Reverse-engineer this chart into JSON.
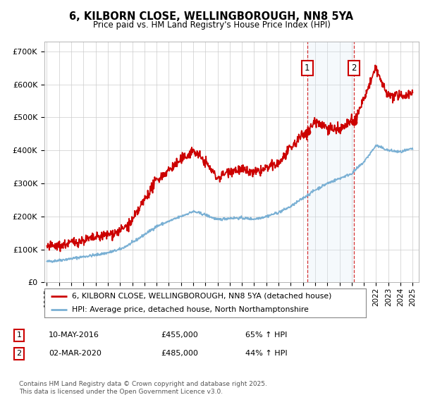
{
  "title": "6, KILBORN CLOSE, WELLINGBOROUGH, NN8 5YA",
  "subtitle": "Price paid vs. HM Land Registry's House Price Index (HPI)",
  "ylabel_values": [
    "£0",
    "£100K",
    "£200K",
    "£300K",
    "£400K",
    "£500K",
    "£600K",
    "£700K"
  ],
  "yticks": [
    0,
    100000,
    200000,
    300000,
    400000,
    500000,
    600000,
    700000
  ],
  "ylim": [
    0,
    730000
  ],
  "xlim_start": 1994.8,
  "xlim_end": 2025.5,
  "line1_color": "#cc0000",
  "line2_color": "#7ab0d4",
  "sale1_date": "10-MAY-2016",
  "sale1_price": 455000,
  "sale1_pct": "65%",
  "sale2_date": "02-MAR-2020",
  "sale2_price": 485000,
  "sale2_pct": "44%",
  "sale1_x": 2016.36,
  "sale2_x": 2020.17,
  "legend1_label": "6, KILBORN CLOSE, WELLINGBOROUGH, NN8 5YA (detached house)",
  "legend2_label": "HPI: Average price, detached house, North Northamptonshire",
  "footnote": "Contains HM Land Registry data © Crown copyright and database right 2025.\nThis data is licensed under the Open Government Licence v3.0.",
  "background_color": "#ffffff",
  "grid_color": "#cccccc",
  "shaded_region_color": "#d8e8f5",
  "hpi_ctrl_years": [
    1995,
    1996,
    1997,
    1998,
    1999,
    2000,
    2001,
    2002,
    2003,
    2004,
    2005,
    2006,
    2007,
    2008,
    2009,
    2010,
    2011,
    2012,
    2013,
    2014,
    2015,
    2016,
    2017,
    2018,
    2019,
    2020,
    2021,
    2022,
    2023,
    2024,
    2025
  ],
  "hpi_ctrl_vals": [
    63000,
    67000,
    72000,
    78000,
    83000,
    90000,
    100000,
    120000,
    145000,
    170000,
    185000,
    200000,
    215000,
    205000,
    190000,
    195000,
    195000,
    192000,
    200000,
    212000,
    230000,
    255000,
    280000,
    300000,
    315000,
    330000,
    365000,
    415000,
    400000,
    395000,
    405000
  ],
  "prop_ctrl_years": [
    1995,
    1996,
    1997,
    1998,
    1999,
    2000,
    2001,
    2002,
    2003,
    2004,
    2005,
    2006,
    2007,
    2008,
    2009,
    2010,
    2011,
    2012,
    2013,
    2014,
    2015,
    2016,
    2016.36,
    2017,
    2018,
    2019,
    2020,
    2020.17,
    2021,
    2022,
    2022.5,
    2023,
    2024,
    2025
  ],
  "prop_ctrl_vals": [
    108000,
    110000,
    120000,
    128000,
    135000,
    145000,
    155000,
    185000,
    250000,
    310000,
    340000,
    370000,
    400000,
    365000,
    315000,
    340000,
    340000,
    330000,
    345000,
    360000,
    405000,
    450000,
    455000,
    490000,
    470000,
    460000,
    490000,
    485000,
    555000,
    650000,
    600000,
    565000,
    565000,
    575000
  ]
}
